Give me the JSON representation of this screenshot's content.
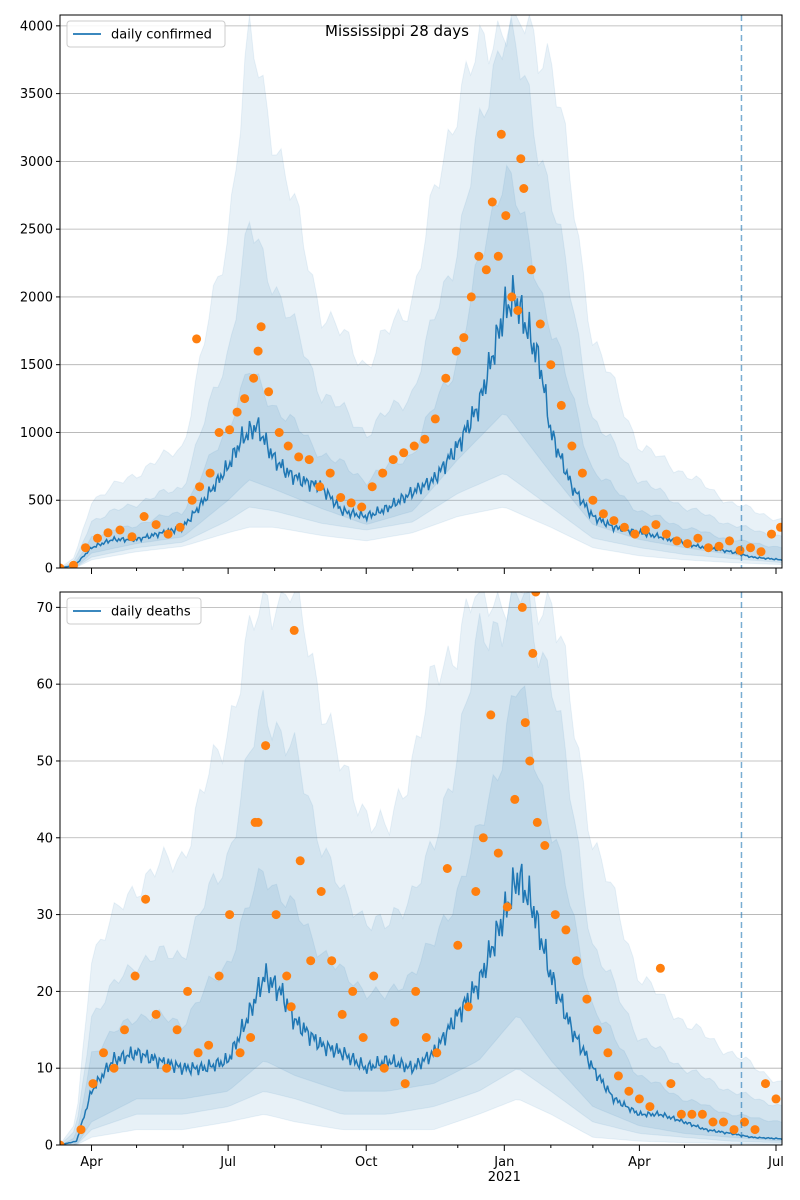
{
  "figure": {
    "title": "Mississippi 28 days",
    "colors": {
      "line": "#1f77b4",
      "points": "#ff7f0e",
      "band": "#1f77b4",
      "vline": "#1f77b4",
      "grid": "#b0b0b0"
    }
  },
  "chart_data": [
    {
      "type": "line",
      "name": "cases",
      "title": "Mississippi 28 days",
      "legend": "daily confirmed",
      "legend_position": "top-left",
      "grid": "horizontal",
      "x_range": [
        "2020-03-11",
        "2021-07-05"
      ],
      "ylim": [
        0,
        4080
      ],
      "y_ticks": [
        0,
        500,
        1000,
        1500,
        2000,
        2500,
        3000,
        3500,
        4000
      ],
      "x_ticks_major": [
        {
          "date": "2020-04-01",
          "label": "Apr"
        },
        {
          "date": "2020-07-01",
          "label": "Jul"
        },
        {
          "date": "2020-10-01",
          "label": "Oct"
        },
        {
          "date": "2021-01-01",
          "label": "Jan"
        },
        {
          "date": "2021-04-01",
          "label": "Apr"
        },
        {
          "date": "2021-07-01",
          "label": "Jul"
        }
      ],
      "x_ticks_minor": [
        "2020-05-01",
        "2020-06-01",
        "2020-08-01",
        "2020-09-01",
        "2020-11-01",
        "2020-12-01",
        "2021-02-01",
        "2021-03-01",
        "2021-05-01",
        "2021-06-01"
      ],
      "vline_date": "2021-06-08",
      "series": [
        {
          "name": "daily confirmed",
          "dates": [
            "2020-03-11",
            "2020-03-21",
            "2020-04-01",
            "2020-04-15",
            "2020-05-01",
            "2020-05-15",
            "2020-06-01",
            "2020-06-15",
            "2020-07-01",
            "2020-07-10",
            "2020-07-20",
            "2020-08-01",
            "2020-08-10",
            "2020-08-20",
            "2020-09-01",
            "2020-09-15",
            "2020-10-01",
            "2020-10-15",
            "2020-11-01",
            "2020-11-15",
            "2020-12-01",
            "2020-12-15",
            "2020-12-25",
            "2021-01-01",
            "2021-01-08",
            "2021-01-15",
            "2021-01-25",
            "2021-02-01",
            "2021-02-15",
            "2021-03-01",
            "2021-03-15",
            "2021-04-01",
            "2021-04-15",
            "2021-05-01",
            "2021-05-15",
            "2021-06-01",
            "2021-06-15",
            "2021-07-05"
          ],
          "values": [
            0,
            20,
            150,
            210,
            210,
            250,
            300,
            500,
            750,
            950,
            1050,
            800,
            700,
            640,
            600,
            420,
            380,
            440,
            560,
            650,
            900,
            1200,
            1600,
            1900,
            2000,
            1800,
            1500,
            1000,
            600,
            380,
            300,
            260,
            230,
            180,
            150,
            120,
            80,
            60
          ]
        }
      ],
      "bands": [
        {
          "dates": [
            "2020-03-11",
            "2020-03-21",
            "2020-04-01",
            "2020-05-01",
            "2020-06-01",
            "2020-07-01",
            "2020-07-15",
            "2020-08-01",
            "2020-09-01",
            "2020-10-01",
            "2020-11-01",
            "2020-12-01",
            "2021-01-01",
            "2021-02-01",
            "2021-03-01",
            "2021-04-01",
            "2021-05-01",
            "2021-06-01",
            "2021-07-05"
          ],
          "lower": [
            0,
            0,
            60,
            120,
            160,
            260,
            300,
            300,
            240,
            200,
            260,
            380,
            450,
            300,
            150,
            90,
            60,
            40,
            25
          ],
          "upper": [
            0,
            80,
            500,
            700,
            900,
            2500,
            3900,
            3200,
            1900,
            1500,
            2000,
            3500,
            4080,
            3800,
            1700,
            900,
            700,
            480,
            350
          ]
        },
        {
          "dates": [
            "2020-03-11",
            "2020-03-21",
            "2020-04-01",
            "2020-05-01",
            "2020-06-01",
            "2020-07-01",
            "2020-07-15",
            "2020-08-01",
            "2020-09-01",
            "2020-10-01",
            "2020-11-01",
            "2020-12-01",
            "2021-01-01",
            "2021-02-01",
            "2021-03-01",
            "2021-04-01",
            "2021-05-01",
            "2021-06-01",
            "2021-07-05"
          ],
          "lower": [
            0,
            0,
            80,
            150,
            190,
            350,
            450,
            420,
            330,
            280,
            340,
            550,
            700,
            450,
            220,
            150,
            100,
            70,
            40
          ],
          "upper": [
            0,
            50,
            350,
            480,
            600,
            1600,
            2500,
            2100,
            1300,
            1000,
            1300,
            2400,
            4080,
            2800,
            1100,
            650,
            450,
            320,
            230
          ]
        },
        {
          "dates": [
            "2020-03-11",
            "2020-03-21",
            "2020-04-01",
            "2020-05-01",
            "2020-06-01",
            "2020-07-01",
            "2020-07-15",
            "2020-08-01",
            "2020-09-01",
            "2020-10-01",
            "2020-11-01",
            "2020-12-01",
            "2021-01-01",
            "2021-02-01",
            "2021-03-01",
            "2021-04-01",
            "2021-05-01",
            "2021-06-01",
            "2021-07-05"
          ],
          "lower": [
            0,
            0,
            110,
            180,
            230,
            500,
            650,
            580,
            440,
            320,
            420,
            800,
            1150,
            700,
            320,
            210,
            150,
            100,
            60
          ],
          "upper": [
            0,
            30,
            230,
            320,
            420,
            1050,
            1450,
            1200,
            850,
            650,
            850,
            1550,
            3000,
            1800,
            720,
            420,
            300,
            210,
            150
          ]
        }
      ],
      "points_dates": [
        "2020-03-11",
        "2020-03-20",
        "2020-03-28",
        "2020-04-05",
        "2020-04-12",
        "2020-04-20",
        "2020-04-28",
        "2020-05-06",
        "2020-05-14",
        "2020-05-22",
        "2020-05-30",
        "2020-06-07",
        "2020-06-12",
        "2020-06-19",
        "2020-06-25",
        "2020-07-02",
        "2020-07-07",
        "2020-07-12",
        "2020-07-18",
        "2020-07-23",
        "2020-07-28",
        "2020-08-04",
        "2020-08-10",
        "2020-08-17",
        "2020-08-24",
        "2020-08-31",
        "2020-09-07",
        "2020-09-14",
        "2020-09-21",
        "2020-09-28",
        "2020-10-05",
        "2020-10-12",
        "2020-10-19",
        "2020-10-26",
        "2020-11-02",
        "2020-11-09",
        "2020-11-16",
        "2020-11-23",
        "2020-11-30",
        "2020-12-05",
        "2020-12-10",
        "2020-12-15",
        "2020-12-20",
        "2020-12-24",
        "2020-12-28",
        "2021-01-02",
        "2021-01-06",
        "2021-01-10",
        "2021-01-14",
        "2021-01-19",
        "2021-01-25",
        "2021-02-01",
        "2021-02-08",
        "2021-02-15",
        "2021-02-22",
        "2021-03-01",
        "2021-03-08",
        "2021-03-15",
        "2021-03-22",
        "2021-03-29",
        "2021-04-05",
        "2021-04-12",
        "2021-04-19",
        "2021-04-26",
        "2021-05-03",
        "2021-05-10",
        "2021-05-17",
        "2021-05-24",
        "2021-05-31",
        "2021-06-07",
        "2021-06-14",
        "2021-06-21",
        "2021-06-28",
        "2021-07-04",
        "2020-06-10",
        "2020-07-21",
        "2020-12-30",
        "2021-01-12"
      ],
      "points_values": [
        0,
        20,
        150,
        220,
        260,
        280,
        230,
        380,
        320,
        250,
        300,
        500,
        600,
        700,
        1000,
        1020,
        1150,
        1250,
        1400,
        1780,
        1300,
        1000,
        900,
        820,
        800,
        600,
        700,
        520,
        480,
        450,
        600,
        700,
        800,
        850,
        900,
        950,
        1100,
        1400,
        1600,
        1700,
        2000,
        2300,
        2200,
        2700,
        2300,
        2600,
        2000,
        1900,
        2800,
        2200,
        1800,
        1500,
        1200,
        900,
        700,
        500,
        400,
        350,
        300,
        250,
        280,
        320,
        250,
        200,
        180,
        220,
        150,
        160,
        200,
        130,
        150,
        120,
        250,
        300,
        1690,
        1600,
        3200,
        3020
      ],
      "_unused": null
    },
    {
      "type": "line",
      "name": "deaths",
      "legend": "daily deaths",
      "legend_position": "top-left",
      "grid": "horizontal",
      "x_range": [
        "2020-03-11",
        "2021-07-05"
      ],
      "ylim": [
        0,
        72
      ],
      "y_ticks": [
        0,
        10,
        20,
        30,
        40,
        50,
        60,
        70
      ],
      "x_ticks_major": [
        {
          "date": "2020-04-01",
          "label": "Apr"
        },
        {
          "date": "2020-07-01",
          "label": "Jul"
        },
        {
          "date": "2020-10-01",
          "label": "Oct"
        },
        {
          "date": "2021-01-01",
          "label": "Jan"
        },
        {
          "date": "2021-04-01",
          "label": "Apr"
        },
        {
          "date": "2021-07-01",
          "label": "Jul"
        }
      ],
      "x_ticks_minor": [
        "2020-05-01",
        "2020-06-01",
        "2020-08-01",
        "2020-09-01",
        "2020-11-01",
        "2020-12-01",
        "2021-02-01",
        "2021-03-01",
        "2021-05-01",
        "2021-06-01"
      ],
      "x_year_label": {
        "date": "2021-01-01",
        "label": "2021"
      },
      "vline_date": "2021-06-08",
      "series": [
        {
          "name": "daily deaths",
          "dates": [
            "2020-03-11",
            "2020-03-22",
            "2020-04-01",
            "2020-04-15",
            "2020-05-01",
            "2020-05-15",
            "2020-06-01",
            "2020-06-15",
            "2020-07-01",
            "2020-07-15",
            "2020-07-25",
            "2020-08-05",
            "2020-08-15",
            "2020-09-01",
            "2020-09-15",
            "2020-10-01",
            "2020-10-15",
            "2020-11-01",
            "2020-11-15",
            "2020-12-01",
            "2020-12-15",
            "2021-01-01",
            "2021-01-10",
            "2021-01-20",
            "2021-02-01",
            "2021-02-15",
            "2021-03-01",
            "2021-03-15",
            "2021-04-01",
            "2021-04-15",
            "2021-05-01",
            "2021-05-15",
            "2021-06-01",
            "2021-06-15",
            "2021-07-05"
          ],
          "values": [
            0,
            0.5,
            7,
            11,
            12,
            11,
            10,
            10,
            11,
            17,
            22,
            20,
            16,
            13,
            12,
            10,
            11,
            10,
            12,
            17,
            21,
            30,
            35,
            31,
            22,
            15,
            10,
            6,
            4,
            4,
            3,
            2,
            1.5,
            1,
            0.8
          ]
        }
      ],
      "bands": [
        {
          "dates": [
            "2020-03-11",
            "2020-03-22",
            "2020-04-01",
            "2020-05-01",
            "2020-06-01",
            "2020-07-01",
            "2020-07-25",
            "2020-08-15",
            "2020-09-15",
            "2020-10-15",
            "2020-11-15",
            "2020-12-15",
            "2021-01-10",
            "2021-02-01",
            "2021-03-01",
            "2021-04-01",
            "2021-05-01",
            "2021-06-01",
            "2021-07-05"
          ],
          "lower": [
            0,
            0,
            1,
            2,
            2,
            3,
            4,
            3,
            2,
            2,
            2,
            4,
            6,
            4,
            1,
            0.5,
            0.3,
            0.2,
            0
          ],
          "upper": [
            0,
            3,
            25,
            34,
            38,
            55,
            72,
            72,
            48,
            40,
            60,
            72,
            72,
            72,
            40,
            22,
            16,
            12,
            8
          ]
        },
        {
          "dates": [
            "2020-03-11",
            "2020-03-22",
            "2020-04-01",
            "2020-05-01",
            "2020-06-01",
            "2020-07-01",
            "2020-07-25",
            "2020-08-15",
            "2020-09-15",
            "2020-10-15",
            "2020-11-15",
            "2020-12-15",
            "2021-01-10",
            "2021-02-01",
            "2021-03-01",
            "2021-04-01",
            "2021-05-01",
            "2021-06-01",
            "2021-07-05"
          ],
          "lower": [
            0,
            0,
            2,
            4,
            4,
            5,
            7,
            6,
            4,
            4,
            5,
            7,
            10,
            7,
            3,
            1.5,
            1,
            0.5,
            0.3
          ],
          "upper": [
            0,
            2,
            17,
            24,
            25,
            38,
            58,
            50,
            32,
            28,
            38,
            65,
            72,
            62,
            26,
            14,
            10,
            7,
            5
          ]
        },
        {
          "dates": [
            "2020-03-11",
            "2020-03-22",
            "2020-04-01",
            "2020-05-01",
            "2020-06-01",
            "2020-07-01",
            "2020-07-25",
            "2020-08-15",
            "2020-09-15",
            "2020-10-15",
            "2020-11-15",
            "2020-12-15",
            "2021-01-10",
            "2021-02-01",
            "2021-03-01",
            "2021-04-01",
            "2021-05-01",
            "2021-06-01",
            "2021-07-05"
          ],
          "lower": [
            0,
            0,
            3,
            6,
            6,
            7,
            11,
            9,
            7,
            7,
            8,
            11,
            17,
            11,
            5,
            2.5,
            1.5,
            1,
            0.5
          ],
          "upper": [
            0,
            1,
            12,
            17,
            16,
            24,
            36,
            30,
            22,
            19,
            26,
            40,
            60,
            42,
            18,
            9,
            6,
            4,
            3
          ]
        }
      ],
      "points_dates": [
        "2020-03-11",
        "2020-03-25",
        "2020-04-02",
        "2020-04-09",
        "2020-04-16",
        "2020-04-23",
        "2020-04-30",
        "2020-05-07",
        "2020-05-14",
        "2020-05-21",
        "2020-05-28",
        "2020-06-04",
        "2020-06-11",
        "2020-06-18",
        "2020-06-25",
        "2020-07-02",
        "2020-07-09",
        "2020-07-16",
        "2020-07-21",
        "2020-07-26",
        "2020-08-02",
        "2020-08-09",
        "2020-08-12",
        "2020-08-18",
        "2020-08-25",
        "2020-09-01",
        "2020-09-08",
        "2020-09-15",
        "2020-09-22",
        "2020-09-29",
        "2020-10-06",
        "2020-10-13",
        "2020-10-20",
        "2020-10-27",
        "2020-11-03",
        "2020-11-10",
        "2020-11-17",
        "2020-11-24",
        "2020-12-01",
        "2020-12-08",
        "2020-12-13",
        "2020-12-18",
        "2020-12-23",
        "2020-12-28",
        "2021-01-03",
        "2021-01-08",
        "2021-01-13",
        "2021-01-18",
        "2021-01-23",
        "2021-01-28",
        "2021-02-04",
        "2021-02-11",
        "2021-02-18",
        "2021-02-25",
        "2021-03-04",
        "2021-03-11",
        "2021-03-18",
        "2021-03-25",
        "2021-04-01",
        "2021-04-08",
        "2021-04-15",
        "2021-04-22",
        "2021-04-29",
        "2021-05-06",
        "2021-05-13",
        "2021-05-20",
        "2021-05-27",
        "2021-06-03",
        "2021-06-10",
        "2021-06-17",
        "2021-06-24",
        "2021-07-01",
        "2020-07-19",
        "2020-08-14",
        "2021-01-15",
        "2021-01-22",
        "2021-01-20"
      ],
      "points_values": [
        0,
        2,
        8,
        12,
        10,
        15,
        22,
        32,
        17,
        10,
        15,
        20,
        12,
        13,
        22,
        30,
        12,
        14,
        42,
        52,
        30,
        22,
        18,
        37,
        24,
        33,
        24,
        17,
        20,
        14,
        22,
        10,
        16,
        8,
        20,
        14,
        12,
        36,
        26,
        18,
        33,
        40,
        56,
        38,
        31,
        45,
        70,
        50,
        42,
        39,
        30,
        28,
        24,
        19,
        15,
        12,
        9,
        7,
        6,
        5,
        23,
        8,
        4,
        4,
        4,
        3,
        3,
        2,
        3,
        2,
        8,
        6,
        42,
        67,
        55,
        72,
        64
      ],
      "_unused": null
    }
  ]
}
